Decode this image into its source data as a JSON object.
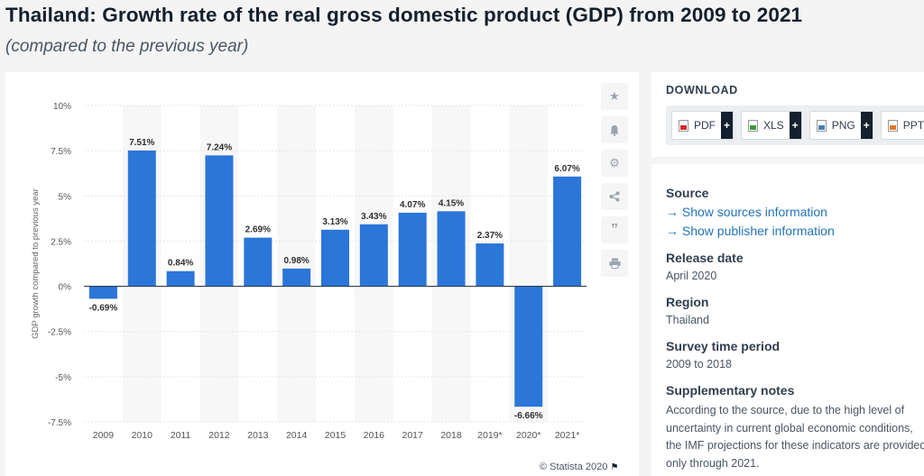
{
  "header": {
    "title": "Thailand: Growth rate of the real gross domestic product (GDP) from 2009 to 2021",
    "subtitle": "(compared to the previous year)"
  },
  "chart_data": {
    "type": "bar",
    "ylabel": "GDP growth compared to previous year",
    "xlabel": "",
    "ylim": [
      -7.5,
      10
    ],
    "yticks": [
      "10%",
      "7.5%",
      "5%",
      "2.5%",
      "0%",
      "-2.5%",
      "-5%",
      "-7.5%"
    ],
    "ytick_values": [
      10,
      7.5,
      5,
      2.5,
      0,
      -2.5,
      -5,
      -7.5
    ],
    "categories": [
      "2009",
      "2010",
      "2011",
      "2012",
      "2013",
      "2014",
      "2015",
      "2016",
      "2017",
      "2018",
      "2019*",
      "2020*",
      "2021*"
    ],
    "values": [
      -0.69,
      7.51,
      0.84,
      7.24,
      2.69,
      0.98,
      3.13,
      3.43,
      4.07,
      4.15,
      2.37,
      -6.66,
      6.07
    ],
    "value_labels": [
      "-0.69%",
      "7.51%",
      "0.84%",
      "7.24%",
      "2.69%",
      "0.98%",
      "3.13%",
      "3.43%",
      "4.07%",
      "4.15%",
      "2.37%",
      "-6.66%",
      "6.07%"
    ],
    "bar_color": "#2b76d9",
    "grid": true,
    "legend": "none"
  },
  "copyright": "© Statista 2020",
  "toolbar": {
    "icons": [
      "star-icon",
      "bell-icon",
      "gear-icon",
      "share-icon",
      "quote-icon",
      "print-icon"
    ]
  },
  "download": {
    "title": "DOWNLOAD",
    "buttons": [
      {
        "label": "PDF",
        "plus": "+"
      },
      {
        "label": "XLS",
        "plus": "+"
      },
      {
        "label": "PNG",
        "plus": "+"
      },
      {
        "label": "PPT",
        "plus": "+"
      }
    ]
  },
  "info": {
    "source_heading": "Source",
    "source_link": "→ Show sources information",
    "publisher_link": "→ Show publisher information",
    "release_heading": "Release date",
    "release_value": "April 2020",
    "region_heading": "Region",
    "region_value": "Thailand",
    "survey_heading": "Survey time period",
    "survey_value": "2009 to 2018",
    "notes_heading": "Supplementary notes",
    "notes_text": "According to the source, due to the high level of uncertainty in current global economic conditions, the IMF projections for these indicators are provided only through 2021."
  }
}
